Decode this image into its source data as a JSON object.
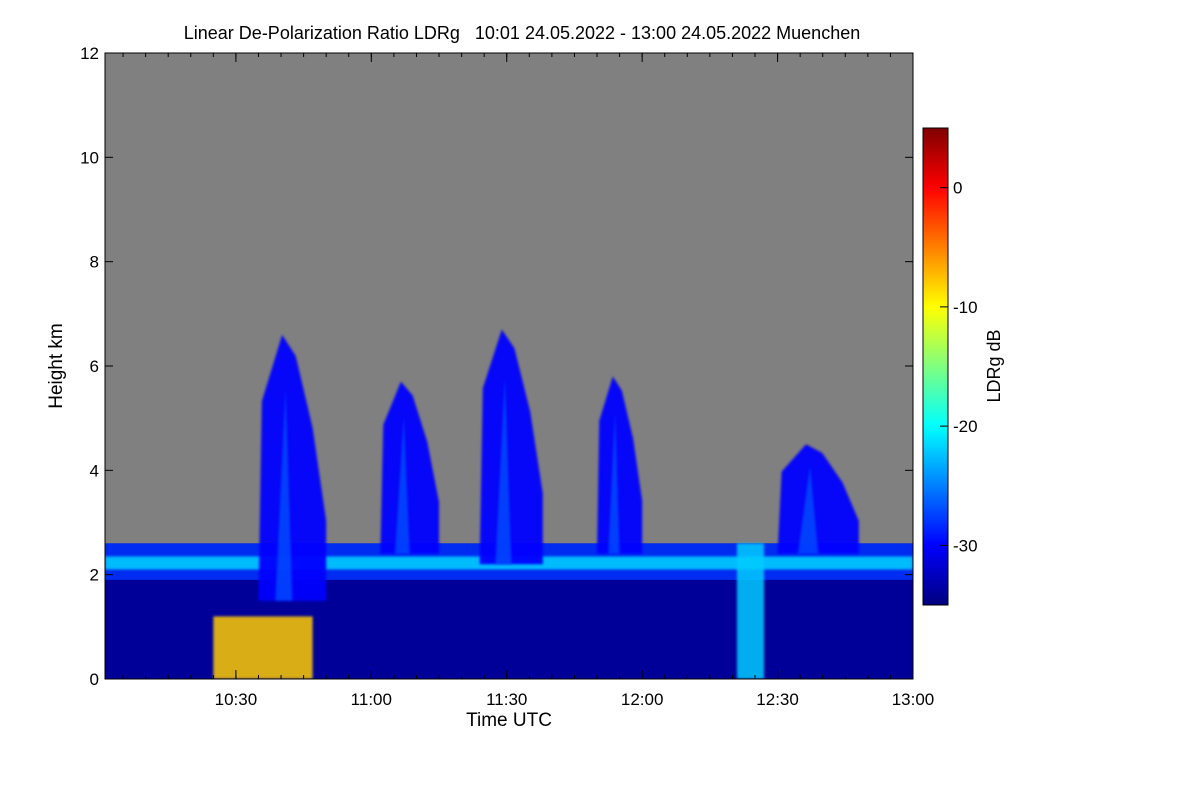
{
  "chart_data": {
    "type": "heatmap",
    "title": "Linear De-Polarization Ratio LDRg   10:01 24.05.2022 - 13:00 24.05.2022 Muenchen",
    "xlabel": "Time UTC",
    "ylabel": "Height km",
    "x_ticks": [
      "10:30",
      "11:00",
      "11:30",
      "12:00",
      "12:30",
      "13:00"
    ],
    "x_range": [
      "10:01",
      "13:00"
    ],
    "y_ticks": [
      0,
      2,
      4,
      6,
      8,
      10,
      12
    ],
    "y_range": [
      0,
      12
    ],
    "colorbar": {
      "label": "LDRg dB",
      "ticks": [
        0,
        -10,
        -20,
        -30
      ],
      "range": [
        -35,
        5
      ],
      "colormap": [
        "#00007f",
        "#0000ff",
        "#007fff",
        "#00ffff",
        "#7fff7f",
        "#ffff00",
        "#ff7f00",
        "#ff0000",
        "#7f0000"
      ]
    },
    "background_color": "#808080",
    "features": [
      {
        "name": "cloud-layer-base",
        "time_range": [
          "10:01",
          "13:00"
        ],
        "height_km": [
          1.9,
          2.6
        ],
        "ldr_db": -22
      },
      {
        "name": "convective-plume-1",
        "time_range": [
          "10:35",
          "10:50"
        ],
        "height_km": [
          1.5,
          6.6
        ],
        "ldr_db": -30
      },
      {
        "name": "convective-plume-2",
        "time_range": [
          "11:02",
          "11:15"
        ],
        "height_km": [
          2.4,
          5.7
        ],
        "ldr_db": -30
      },
      {
        "name": "convective-plume-3",
        "time_range": [
          "11:24",
          "11:38"
        ],
        "height_km": [
          2.2,
          6.7
        ],
        "ldr_db": -30
      },
      {
        "name": "convective-plume-4",
        "time_range": [
          "11:50",
          "12:00"
        ],
        "height_km": [
          2.4,
          5.8
        ],
        "ldr_db": -30
      },
      {
        "name": "convective-plume-5",
        "time_range": [
          "12:30",
          "12:48"
        ],
        "height_km": [
          2.4,
          4.5
        ],
        "ldr_db": -30
      },
      {
        "name": "precipitation-column",
        "time_range": [
          "12:21",
          "12:27"
        ],
        "height_km": [
          0,
          2.6
        ],
        "ldr_db": -22
      },
      {
        "name": "near-surface-depol",
        "time_range": [
          "10:25",
          "10:47"
        ],
        "height_km": [
          0,
          1.2
        ],
        "ldr_db": -8
      }
    ]
  }
}
